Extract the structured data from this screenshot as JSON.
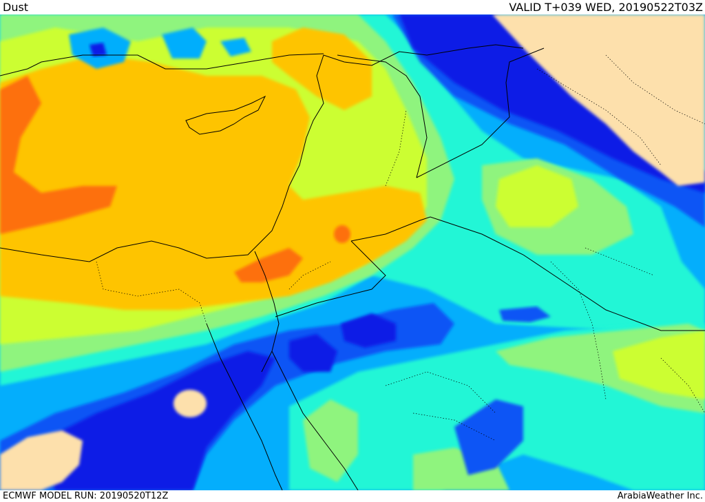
{
  "header": {
    "title": "Dust",
    "valid_time": "VALID T+039 WED, 20190522T03Z"
  },
  "footer": {
    "model_run": "ECMWF MODEL RUN: 20190520T12Z",
    "credit": "ArabiaWeather Inc."
  },
  "colors": {
    "land_no_data": "#fde0ac",
    "darkest_blue": "#0a1ee6",
    "blue": "#0a55f5",
    "light_blue": "#04aefc",
    "cyan": "#23f6d6",
    "light_green": "#8ff47e",
    "yellow_green": "#ccfe33",
    "orange": "#fec402",
    "dark_orange": "#fd7010",
    "boundary_line": "#000000"
  }
}
